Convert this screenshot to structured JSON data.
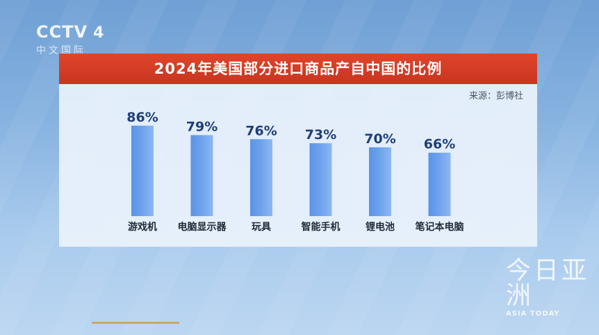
{
  "logo": {
    "brand": "CCTV",
    "channel": "4",
    "sub": "中文国际"
  },
  "source_label": "来源：彭博社",
  "watermark": {
    "cn": "今日亚洲",
    "en": "ASIA TODAY"
  },
  "colors": {
    "bar": "#6fa3ec",
    "title_bg": "#d63b24",
    "value_text": "#1f3e78"
  },
  "chart_data": {
    "type": "bar",
    "title": "2024年美国部分进口商品产自中国的比例",
    "categories": [
      "游戏机",
      "电脑显示器",
      "玩具",
      "智能手机",
      "锂电池",
      "笔记本电脑"
    ],
    "values": [
      86,
      79,
      76,
      73,
      70,
      66
    ],
    "data_labels": [
      "86%",
      "79%",
      "76%",
      "73%",
      "70%",
      "66%"
    ],
    "ylim": [
      0,
      100
    ],
    "grid": false,
    "legend": "none"
  }
}
